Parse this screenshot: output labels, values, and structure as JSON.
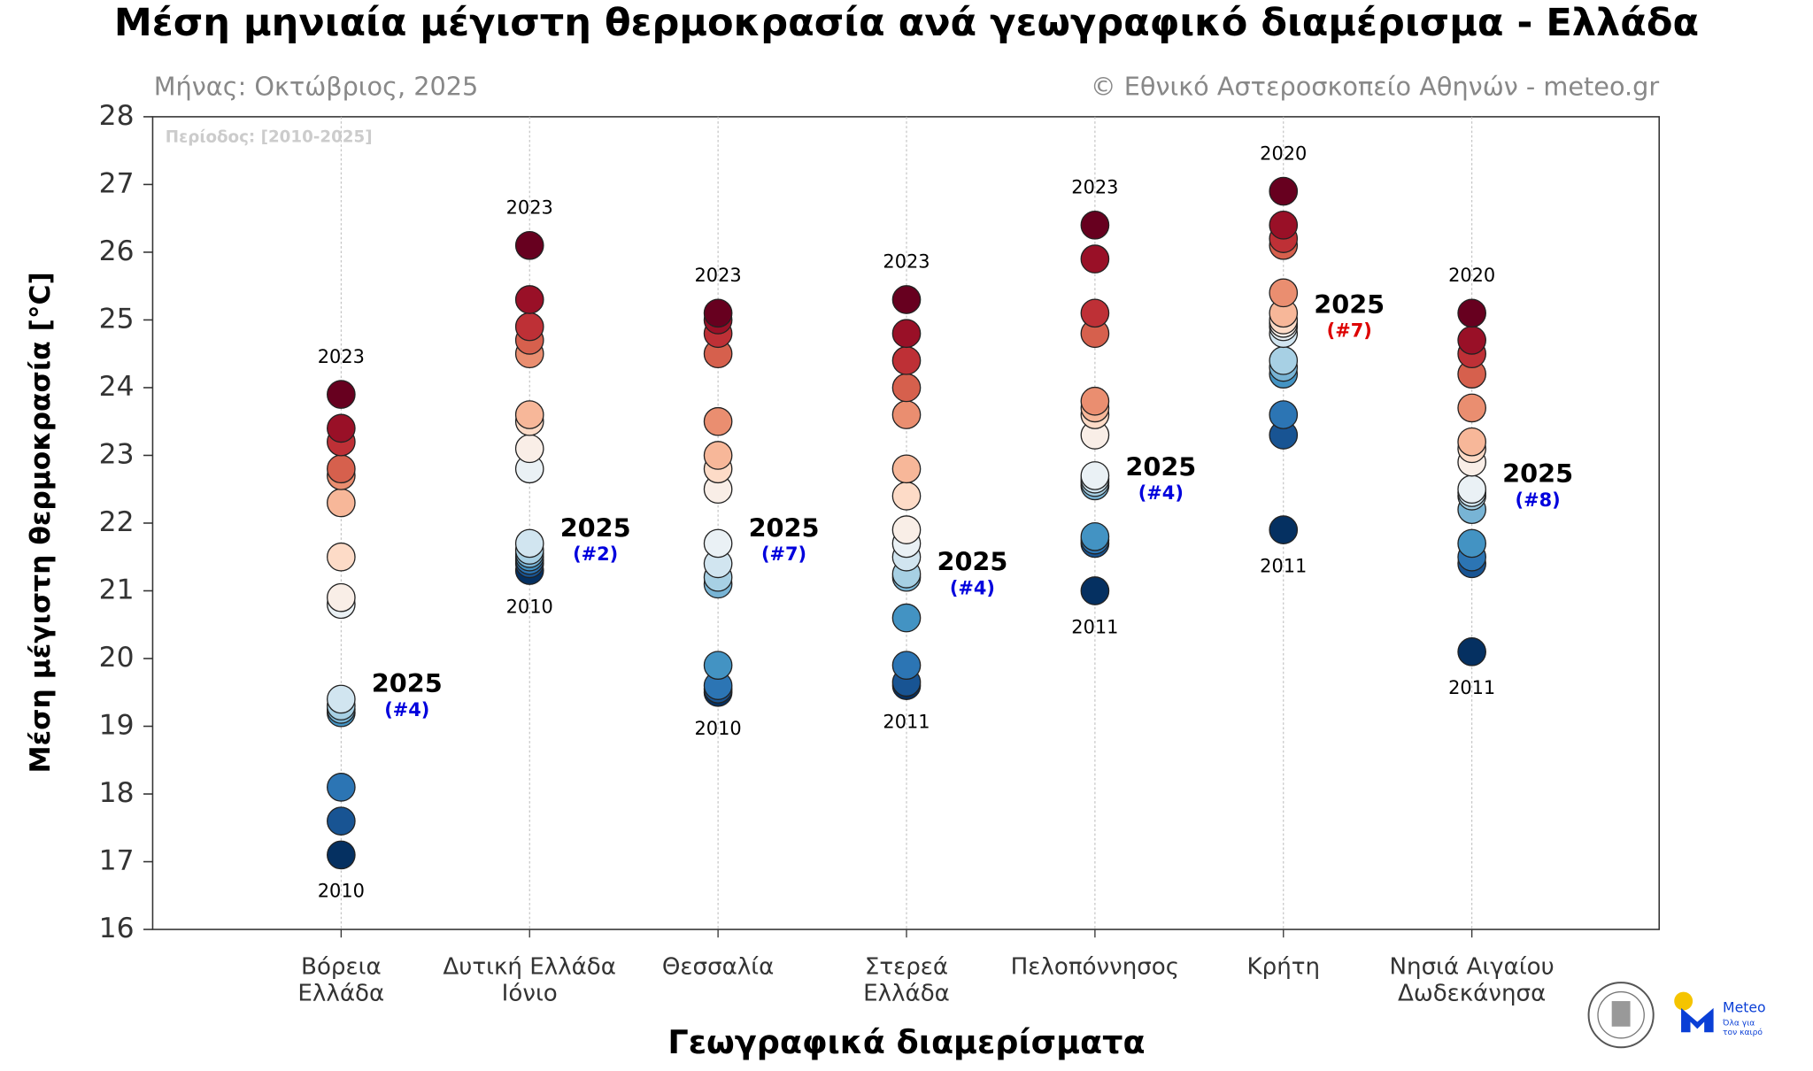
{
  "chart_data": {
    "type": "strip",
    "title": "Μέση μηνιαία μέγιστη θερμοκρασία ανά γεωγραφικό διαμέρισμα - Ελλάδα",
    "subtitle": "Μήνας: Οκτώβριος, 2025",
    "credit": "© Εθνικό Αστεροσκοπείο Αθηνών - meteo.gr",
    "period": "Περίοδος: [2010-2025]",
    "ylabel": "Μέση μέγιστη θερμοκρασία [°C]",
    "xlabel": "Γεωγραφικά διαμερίσματα",
    "ylim": [
      16,
      28
    ],
    "yticks": [
      16,
      17,
      18,
      19,
      20,
      21,
      22,
      23,
      24,
      25,
      26,
      27,
      28
    ],
    "colormap": [
      "#053061",
      "#2166ac",
      "#4393c3",
      "#92c5de",
      "#d1e5f0",
      "#f7f7f7",
      "#fddbc7",
      "#f4a582",
      "#d6604d",
      "#b2182b",
      "#67001f"
    ],
    "highlight_label": "2025",
    "categories": [
      [
        "Βόρεια",
        "Ελλάδα"
      ],
      [
        "Δυτική Ελλάδα",
        "Ιόνιο"
      ],
      [
        "Θεσσαλία"
      ],
      [
        "Στερεά",
        "Ελλάδα"
      ],
      [
        "Πελοπόννησος"
      ],
      [
        "Κρήτη"
      ],
      [
        "Νησιά Αιγαίου",
        "Δωδεκάνησα"
      ]
    ],
    "series": [
      {
        "values": [
          23.9,
          23.4,
          23.2,
          22.8,
          22.7,
          22.3,
          21.5,
          20.9,
          20.8,
          19.3,
          19.25,
          19.2,
          18.1,
          17.6,
          17.1
        ],
        "value_2025": 19.4,
        "rank": "(#4)",
        "rank_color": "#0000dd",
        "max_year": "2023",
        "min_year": "2010"
      },
      {
        "values": [
          26.1,
          25.3,
          24.9,
          24.7,
          24.5,
          23.6,
          23.5,
          23.1,
          22.8,
          21.6,
          21.55,
          21.5,
          21.45,
          21.4,
          21.3
        ],
        "value_2025": 21.7,
        "rank": "(#2)",
        "rank_color": "#0000dd",
        "max_year": "2023",
        "min_year": "2010"
      },
      {
        "values": [
          25.1,
          25.0,
          24.8,
          24.5,
          23.5,
          23.0,
          22.8,
          22.5,
          21.4,
          21.2,
          21.1,
          19.9,
          19.6,
          19.55,
          19.5
        ],
        "value_2025": 21.7,
        "rank": "(#7)",
        "rank_color": "#0000dd",
        "max_year": "2023",
        "min_year": "2010"
      },
      {
        "values": [
          25.3,
          24.8,
          24.4,
          24.0,
          23.6,
          22.8,
          22.4,
          21.9,
          21.7,
          21.5,
          20.6,
          19.9,
          19.65,
          19.6,
          21.25
        ],
        "value_2025": 21.2,
        "rank": "(#4)",
        "rank_color": "#0000dd",
        "max_year": "2023",
        "min_year": "2011"
      },
      {
        "values": [
          26.4,
          25.9,
          25.1,
          24.8,
          23.8,
          23.7,
          23.6,
          23.3,
          22.7,
          22.65,
          21.8,
          21.75,
          21.7,
          21.0,
          22.55
        ],
        "value_2025": 22.6,
        "rank": "(#4)",
        "rank_color": "#0000dd",
        "max_year": "2023",
        "min_year": "2011"
      },
      {
        "values": [
          26.9,
          26.4,
          26.2,
          26.1,
          25.4,
          25.1,
          24.95,
          24.8,
          24.4,
          24.3,
          24.2,
          23.6,
          23.3,
          21.9,
          24.9
        ],
        "value_2025": 25.0,
        "rank": "(#7)",
        "rank_color": "#dd0000",
        "max_year": "2020",
        "min_year": "2011"
      },
      {
        "values": [
          25.1,
          24.7,
          24.5,
          24.2,
          23.7,
          23.2,
          23.1,
          22.9,
          22.4,
          22.2,
          21.7,
          21.5,
          21.4,
          20.1,
          22.45
        ],
        "value_2025": 22.5,
        "rank": "(#8)",
        "rank_color": "#0000dd",
        "max_year": "2020",
        "min_year": "2011"
      }
    ],
    "logo_text": [
      "Meteo",
      "Όλα για",
      "τον καιρό"
    ]
  }
}
